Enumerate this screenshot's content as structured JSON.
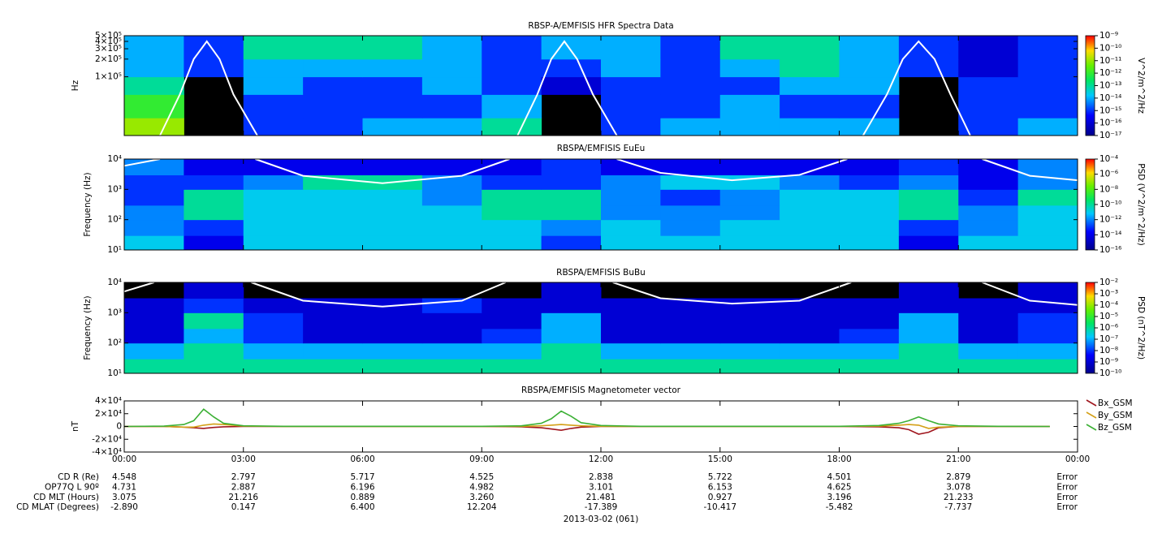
{
  "chart_data": [
    {
      "type": "heatmap",
      "title": "RBSP-A/EMFISIS  HFR Spectra Data",
      "ylabel": "Hz",
      "ylog": true,
      "ylim": [
        10000,
        500000
      ],
      "yticks": [
        {
          "value": 100000,
          "label": "1×10⁵"
        },
        {
          "value": 200000,
          "label": "2×10⁵"
        },
        {
          "value": 300000,
          "label": "3×10⁵"
        },
        {
          "value": 400000,
          "label": "4×10⁵"
        },
        {
          "value": 500000,
          "label": "5×10⁵"
        }
      ],
      "xbins": [
        0,
        1.5,
        3,
        4.5,
        6,
        7.5,
        9,
        10.5,
        12,
        13.5,
        15,
        16.5,
        18,
        19.5,
        21,
        22.5,
        24
      ],
      "ybins": [
        10000,
        20000,
        50000,
        100000,
        200000,
        500000
      ],
      "z": [
        [
          1e-11,
          null,
          1e-15,
          1e-15,
          1e-14,
          1e-14,
          1e-13,
          null,
          1e-15,
          1e-14,
          1e-14,
          1e-14,
          1e-14,
          null,
          1e-15,
          1e-14
        ],
        [
          1e-12,
          null,
          1e-15,
          1e-15,
          1e-15,
          1e-15,
          1e-14,
          null,
          1e-15,
          1e-15,
          1e-14,
          1e-15,
          1e-15,
          null,
          1e-15,
          1e-15
        ],
        [
          1e-13,
          null,
          1e-14,
          1e-15,
          1e-15,
          1e-14,
          1e-15,
          1e-16,
          1e-15,
          1e-15,
          1e-15,
          1e-14,
          1e-14,
          null,
          1e-15,
          1e-15
        ],
        [
          1e-14,
          1e-15,
          1e-14,
          1e-14,
          1e-14,
          1e-14,
          1e-15,
          1e-15,
          1e-14,
          1e-15,
          1e-14,
          1e-13,
          1e-14,
          1e-15,
          1e-16,
          1e-15
        ],
        [
          1e-14,
          1e-15,
          1e-13,
          1e-13,
          1e-13,
          1e-14,
          1e-15,
          1e-14,
          1e-14,
          1e-15,
          1e-13,
          1e-13,
          1e-14,
          1e-15,
          1e-16,
          1e-15
        ]
      ],
      "series": [
        {
          "color": "#ffffff",
          "x": [
            0.9,
            1.4,
            1.75,
            2.08,
            2.4,
            2.75,
            3.35,
            6,
            9.9,
            10.4,
            10.75,
            11.08,
            11.4,
            11.8,
            12.4,
            15,
            18.6,
            19.2,
            19.6,
            20.0,
            20.4,
            20.8,
            21.3
          ],
          "values": [
            10000,
            50000,
            200000,
            400000,
            200000,
            50000,
            10000,
            null,
            10000,
            50000,
            200000,
            400000,
            200000,
            50000,
            10000,
            null,
            10000,
            50000,
            200000,
            400000,
            200000,
            50000,
            10000
          ]
        }
      ],
      "colorbar": {
        "label": "V^2/m^2/Hz",
        "lim": [
          1e-17,
          1e-09
        ],
        "ticks": [
          {
            "value": 1e-09,
            "label": "10⁻⁹"
          },
          {
            "value": 1e-10,
            "label": "10⁻¹⁰"
          },
          {
            "value": 1e-11,
            "label": "10⁻¹¹"
          },
          {
            "value": 1e-12,
            "label": "10⁻¹²"
          },
          {
            "value": 1e-13,
            "label": "10⁻¹³"
          },
          {
            "value": 1e-14,
            "label": "10⁻¹⁴"
          },
          {
            "value": 1e-15,
            "label": "10⁻¹⁵"
          },
          {
            "value": 1e-16,
            "label": "10⁻¹⁶"
          },
          {
            "value": 1e-17,
            "label": "10⁻¹⁷"
          }
        ]
      }
    },
    {
      "type": "heatmap",
      "title": "RBSPA/EMFISIS  EuEu",
      "ylabel": "Frequency (Hz)",
      "ylog": true,
      "ylim": [
        10,
        10000
      ],
      "yticks": [
        {
          "value": 10,
          "label": "10¹"
        },
        {
          "value": 100,
          "label": "10²"
        },
        {
          "value": 1000,
          "label": "10³"
        },
        {
          "value": 10000,
          "label": "10⁴"
        }
      ],
      "xbins": [
        0,
        1.5,
        3,
        4.5,
        6,
        7.5,
        9,
        10.5,
        12,
        13.5,
        15,
        16.5,
        18,
        19.5,
        21,
        22.5,
        24
      ],
      "ybins": [
        10,
        30,
        100,
        300,
        1000,
        3000,
        10000
      ],
      "z": [
        [
          1e-11,
          1e-14,
          1e-11,
          1e-11,
          1e-11,
          1e-11,
          1e-11,
          1e-13,
          1e-11,
          1e-11,
          1e-11,
          1e-11,
          1e-11,
          1e-14,
          1e-11,
          1e-11
        ],
        [
          1e-12,
          1e-13,
          1e-11,
          1e-11,
          1e-11,
          1e-11,
          1e-11,
          1e-12,
          1e-11,
          1e-12,
          1e-11,
          1e-11,
          1e-11,
          1e-13,
          1e-12,
          1e-11
        ],
        [
          1e-12,
          1e-10,
          1e-11,
          1e-11,
          1e-11,
          1e-11,
          1e-10,
          1e-10,
          1e-12,
          1e-12,
          1e-12,
          1e-11,
          1e-11,
          1e-10,
          1e-12,
          1e-11
        ],
        [
          1e-13,
          1e-10,
          1e-11,
          1e-11,
          1e-11,
          1e-12,
          1e-10,
          1e-10,
          1e-12,
          1e-13,
          1e-12,
          1e-11,
          1e-11,
          1e-10,
          1e-13,
          1e-10
        ],
        [
          1e-13,
          1e-13,
          1e-12,
          1e-10,
          1e-10,
          1e-12,
          1e-13,
          1e-13,
          1e-12,
          1e-11,
          1e-11,
          1e-12,
          1e-13,
          1e-12,
          1e-14,
          1e-12
        ],
        [
          1e-12,
          1e-14,
          1e-14,
          1e-14,
          1e-14,
          1e-14,
          1e-14,
          1e-13,
          1e-14,
          1e-14,
          1e-14,
          1e-14,
          1e-14,
          1e-13,
          1e-14,
          1e-12
        ]
      ],
      "series": [
        {
          "color": "#ffffff",
          "x": [
            0,
            0.9,
            2,
            3.3,
            4.5,
            6.5,
            8.5,
            9.7,
            11,
            12.4,
            13.5,
            15.3,
            17,
            18.2,
            20,
            21.6,
            22.8,
            24
          ],
          "values": [
            6000,
            10000,
            null,
            10000,
            2800,
            1600,
            2800,
            10000,
            null,
            10000,
            3500,
            2000,
            3000,
            10000,
            null,
            10000,
            2800,
            2000
          ]
        }
      ],
      "colorbar": {
        "label": "PSD (V^2/m^2/Hz)",
        "lim": [
          1e-16,
          0.0001
        ],
        "ticks": [
          {
            "value": 0.0001,
            "label": "10⁻⁴"
          },
          {
            "value": 1e-06,
            "label": "10⁻⁶"
          },
          {
            "value": 1e-08,
            "label": "10⁻⁸"
          },
          {
            "value": 1e-10,
            "label": "10⁻¹⁰"
          },
          {
            "value": 1e-12,
            "label": "10⁻¹²"
          },
          {
            "value": 1e-14,
            "label": "10⁻¹⁴"
          },
          {
            "value": 1e-16,
            "label": "10⁻¹⁶"
          }
        ]
      }
    },
    {
      "type": "heatmap",
      "title": "RBSPA/EMFISIS  BuBu",
      "ylabel": "Frequency (Hz)",
      "ylog": true,
      "ylim": [
        10,
        10000
      ],
      "yticks": [
        {
          "value": 10,
          "label": "10¹"
        },
        {
          "value": 100,
          "label": "10²"
        },
        {
          "value": 1000,
          "label": "10³"
        },
        {
          "value": 10000,
          "label": "10⁴"
        }
      ],
      "xbins": [
        0,
        1.5,
        3,
        4.5,
        6,
        7.5,
        9,
        10.5,
        12,
        13.5,
        15,
        16.5,
        18,
        19.5,
        21,
        22.5,
        24
      ],
      "ybins": [
        10,
        30,
        100,
        300,
        1000,
        3000,
        10000
      ],
      "z": [
        [
          1e-06,
          1e-06,
          1e-06,
          1e-06,
          1e-06,
          1e-06,
          1e-06,
          1e-06,
          1e-06,
          1e-06,
          1e-06,
          1e-06,
          1e-06,
          1e-06,
          1e-06,
          1e-06
        ],
        [
          1e-07,
          1e-06,
          1e-07,
          1e-07,
          1e-07,
          1e-07,
          1e-07,
          1e-06,
          1e-07,
          1e-07,
          1e-07,
          1e-07,
          1e-07,
          1e-06,
          1e-07,
          1e-07
        ],
        [
          1e-09,
          1e-07,
          1e-08,
          1e-09,
          1e-09,
          1e-09,
          1e-08,
          1e-07,
          1e-09,
          1e-09,
          1e-09,
          1e-09,
          1e-08,
          1e-07,
          1e-09,
          1e-08
        ],
        [
          1e-09,
          1e-06,
          1e-08,
          1e-09,
          1e-09,
          1e-09,
          1e-09,
          1e-07,
          1e-09,
          1e-09,
          1e-09,
          1e-09,
          1e-09,
          1e-07,
          1e-09,
          1e-08
        ],
        [
          1e-09,
          1e-08,
          1e-09,
          1e-09,
          1e-09,
          1e-08,
          1e-09,
          1e-09,
          1e-09,
          1e-09,
          1e-09,
          1e-09,
          1e-09,
          1e-09,
          1e-09,
          1e-09
        ],
        [
          null,
          1e-09,
          null,
          null,
          null,
          null,
          null,
          1e-09,
          null,
          null,
          null,
          null,
          null,
          1e-09,
          null,
          1e-09
        ]
      ],
      "series": [
        {
          "color": "#ffffff",
          "x": [
            0,
            0.75,
            2,
            3.2,
            4.5,
            6.5,
            8.5,
            9.6,
            11,
            12.3,
            13.5,
            15.3,
            17,
            18.3,
            20,
            21.6,
            22.8,
            24
          ],
          "values": [
            5000,
            10000,
            null,
            10000,
            2500,
            1600,
            2500,
            10000,
            null,
            10000,
            3000,
            2000,
            2500,
            10000,
            null,
            10000,
            2500,
            1800
          ]
        }
      ],
      "colorbar": {
        "label": "PSD (nT^2/Hz)",
        "lim": [
          1e-10,
          0.01
        ],
        "ticks": [
          {
            "value": 0.01,
            "label": "10⁻²"
          },
          {
            "value": 0.001,
            "label": "10⁻³"
          },
          {
            "value": 0.0001,
            "label": "10⁻⁴"
          },
          {
            "value": 1e-05,
            "label": "10⁻⁵"
          },
          {
            "value": 1e-06,
            "label": "10⁻⁶"
          },
          {
            "value": 1e-07,
            "label": "10⁻⁷"
          },
          {
            "value": 1e-08,
            "label": "10⁻⁸"
          },
          {
            "value": 1e-09,
            "label": "10⁻⁹"
          },
          {
            "value": 1e-10,
            "label": "10⁻¹⁰"
          }
        ]
      }
    },
    {
      "type": "line",
      "title": "RBSPA/EMFISIS  Magnetometer vector",
      "ylabel": "nT",
      "xlim": [
        0,
        24
      ],
      "xticks": [
        {
          "value": 0,
          "label": "00:00"
        },
        {
          "value": 3,
          "label": "03:00"
        },
        {
          "value": 6,
          "label": "06:00"
        },
        {
          "value": 9,
          "label": "09:00"
        },
        {
          "value": 12,
          "label": "12:00"
        },
        {
          "value": 15,
          "label": "15:00"
        },
        {
          "value": 18,
          "label": "18:00"
        },
        {
          "value": 21,
          "label": "21:00"
        },
        {
          "value": 24,
          "label": "00:00"
        }
      ],
      "ylim": [
        -40000,
        40000
      ],
      "yticks": [
        {
          "value": 40000,
          "label": "4×10⁴"
        },
        {
          "value": 20000,
          "label": "2×10⁴"
        },
        0,
        {
          "value": -20000,
          "label": "-2×10⁴"
        },
        {
          "value": -40000,
          "label": "-4×10⁴"
        }
      ],
      "x": [
        0,
        1,
        1.5,
        1.75,
        2,
        2.25,
        2.5,
        3,
        4,
        9,
        10,
        10.5,
        10.75,
        11,
        11.25,
        11.5,
        12,
        13,
        18,
        19,
        19.5,
        19.75,
        20,
        20.25,
        20.5,
        21,
        22,
        23.3
      ],
      "series": [
        {
          "name": "Bx_GSM",
          "color": "#a0161e",
          "values": [
            0,
            0,
            -1000,
            -2000,
            -3000,
            -1500,
            -500,
            0,
            0,
            0,
            -500,
            -2000,
            -4000,
            -6000,
            -3000,
            -1000,
            0,
            0,
            0,
            -500,
            -2000,
            -5000,
            -12000,
            -9000,
            -2000,
            0,
            0,
            0
          ]
        },
        {
          "name": "By_GSM",
          "color": "#d4a017",
          "values": [
            0,
            0,
            -1000,
            -1000,
            2000,
            4000,
            3000,
            500,
            0,
            0,
            0,
            1000,
            2000,
            3000,
            2000,
            1000,
            200,
            0,
            0,
            500,
            2000,
            3000,
            2000,
            -3000,
            -1000,
            0,
            0,
            0
          ]
        },
        {
          "name": "Bz_GSM",
          "color": "#3cb035",
          "values": [
            0,
            500,
            3000,
            9000,
            27000,
            15000,
            5000,
            1000,
            200,
            200,
            1000,
            5000,
            12000,
            24000,
            16000,
            6000,
            1500,
            200,
            300,
            1500,
            5000,
            9000,
            15000,
            9000,
            4000,
            1000,
            200,
            0
          ]
        }
      ]
    }
  ],
  "ephemeris": {
    "rows": [
      {
        "label": "CD R (Re)",
        "values": [
          "4.548",
          "2.797",
          "5.717",
          "4.525",
          "2.838",
          "5.722",
          "4.501",
          "2.879",
          "Error"
        ]
      },
      {
        "label": "OP77Q L 90º",
        "values": [
          "4.731",
          "2.887",
          "6.196",
          "4.982",
          "3.101",
          "6.153",
          "4.625",
          "3.078",
          "Error"
        ]
      },
      {
        "label": "CD MLT (Hours)",
        "values": [
          "3.075",
          "21.216",
          "0.889",
          "3.260",
          "21.481",
          "0.927",
          "3.196",
          "21.233",
          "Error"
        ]
      },
      {
        "label": "CD MLAT (Degrees)",
        "values": [
          "-2.890",
          "0.147",
          "6.400",
          "12.204",
          "-17.389",
          "-10.417",
          "-5.482",
          "-7.737",
          "Error"
        ]
      }
    ],
    "date_label": "2013-03-02 (061)"
  }
}
